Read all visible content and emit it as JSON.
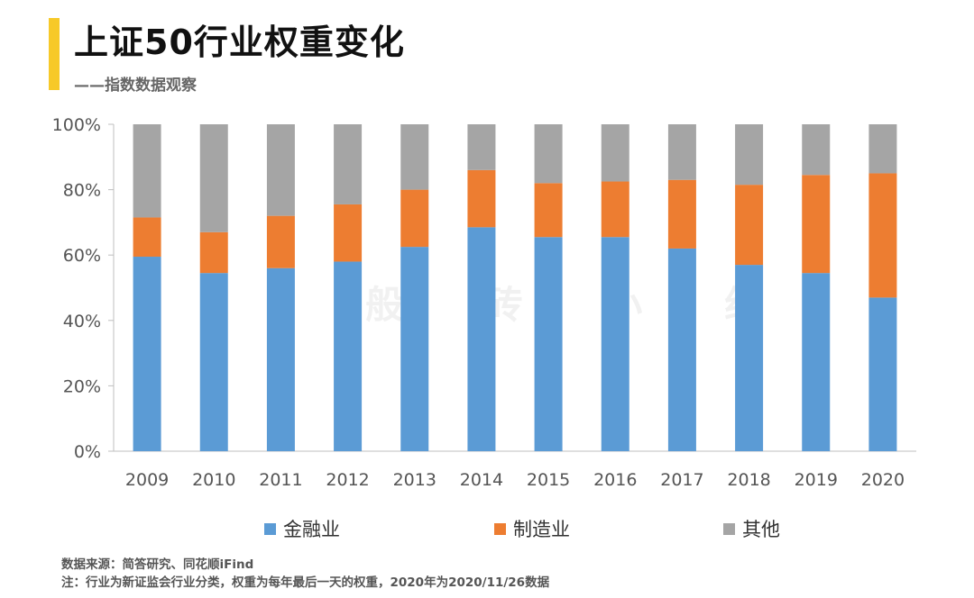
{
  "header": {
    "title": "上证50行业权重变化",
    "subtitle": "——指数数据观察",
    "accent_color": "#F7C928"
  },
  "watermark": "般 砖 小 组",
  "chart_data": {
    "type": "bar",
    "stacked": true,
    "categories": [
      "2009",
      "2010",
      "2011",
      "2012",
      "2013",
      "2014",
      "2015",
      "2016",
      "2017",
      "2018",
      "2019",
      "2020"
    ],
    "series": [
      {
        "name": "金融业",
        "color": "#5B9BD5",
        "values": [
          59.5,
          54.5,
          56,
          58,
          62.5,
          68.5,
          65.5,
          65.5,
          62,
          57,
          54.5,
          47
        ]
      },
      {
        "name": "制造业",
        "color": "#ED7D31",
        "values": [
          12,
          12.5,
          16,
          17.5,
          17.5,
          17.5,
          16.5,
          17,
          21,
          24.5,
          30,
          38
        ]
      },
      {
        "name": "其他",
        "color": "#A5A5A5",
        "values": [
          28.5,
          33,
          28,
          24.5,
          20,
          14,
          18,
          17.5,
          17,
          18.5,
          15.5,
          15
        ]
      }
    ],
    "ylim": [
      0,
      100
    ],
    "yticks": [
      "0%",
      "20%",
      "40%",
      "60%",
      "80%",
      "100%"
    ],
    "ytick_values": [
      0,
      20,
      40,
      60,
      80,
      100
    ],
    "legend_position": "bottom"
  },
  "footer": {
    "source": "数据来源：简答研究、同花顺iFind",
    "note": "注：行业为新证监会行业分类，权重为每年最后一天的权重，2020年为2020/11/26数据"
  }
}
